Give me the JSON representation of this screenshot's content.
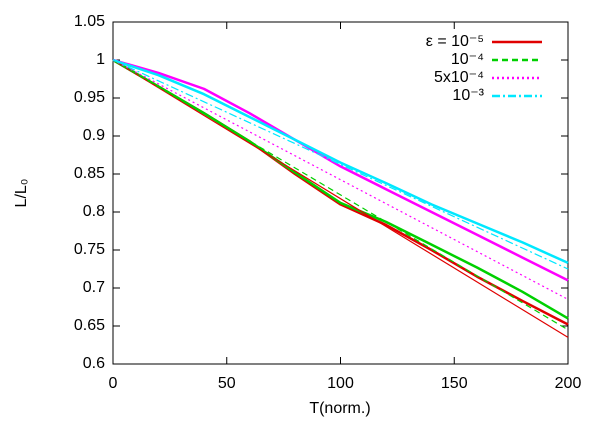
{
  "chart_data": {
    "type": "line",
    "xlabel": "T(norm.)",
    "ylabel": "L/L₀",
    "xlim": [
      0,
      200
    ],
    "xticks": [
      0,
      50,
      100,
      150,
      200
    ],
    "ylim": [
      0.6,
      1.05
    ],
    "yticks": [
      0.6,
      0.65,
      0.7,
      0.75,
      0.8,
      0.85,
      0.9,
      0.95,
      1,
      1.05
    ],
    "legend": "upper-right",
    "x": [
      0,
      200
    ],
    "sim_x": [
      0,
      20,
      40,
      60,
      80,
      100,
      120,
      140,
      160,
      180,
      200
    ],
    "series": [
      {
        "name": "ε = 10⁻⁵",
        "color": "#e00000",
        "dash": "solid",
        "values": [
          1.0,
          0.635
        ],
        "sim_values": [
          1.0,
          0.965,
          0.93,
          0.893,
          0.85,
          0.81,
          0.783,
          0.75,
          0.715,
          0.683,
          0.652
        ]
      },
      {
        "name": "10⁻⁴",
        "color": "#00d000",
        "dash": "dashed",
        "values": [
          1.0,
          0.645
        ],
        "sim_values": [
          1.0,
          0.965,
          0.93,
          0.893,
          0.852,
          0.812,
          0.787,
          0.757,
          0.727,
          0.695,
          0.66
        ]
      },
      {
        "name": "5x10⁻⁴",
        "color": "#ff00ff",
        "dash": "dotted",
        "values": [
          1.0,
          0.685
        ],
        "sim_values": [
          1.0,
          0.983,
          0.962,
          0.93,
          0.895,
          0.86,
          0.83,
          0.8,
          0.77,
          0.74,
          0.71
        ]
      },
      {
        "name": "10⁻³",
        "color": "#00e8ff",
        "dash": "dash-dot",
        "values": [
          1.0,
          0.725
        ],
        "sim_values": [
          1.0,
          0.98,
          0.955,
          0.925,
          0.895,
          0.865,
          0.838,
          0.81,
          0.785,
          0.76,
          0.733
        ]
      }
    ]
  }
}
